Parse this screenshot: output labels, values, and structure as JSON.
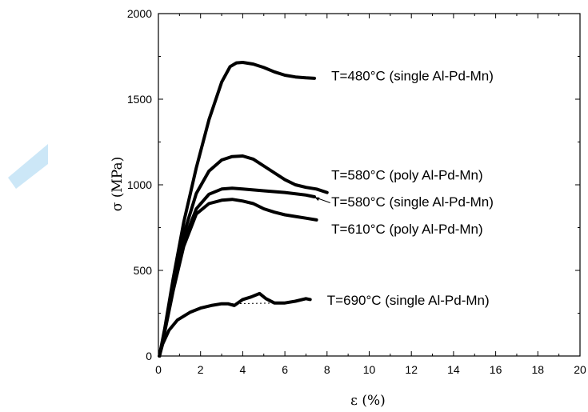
{
  "chart_data": {
    "type": "line",
    "title": "",
    "xlabel": "ε (%)",
    "ylabel": "σ (MPa)",
    "xlim": [
      0,
      20
    ],
    "ylim": [
      0,
      2000
    ],
    "xticks": [
      0,
      2,
      4,
      6,
      8,
      10,
      12,
      14,
      16,
      18,
      20
    ],
    "yticks": [
      0,
      500,
      1000,
      1500,
      2000
    ],
    "grid": false,
    "legend": "none",
    "series": [
      {
        "name": "T=480°C (single Al-Pd-Mn)",
        "x": [
          0.05,
          0.3,
          0.7,
          1.2,
          1.8,
          2.4,
          3.0,
          3.4,
          3.7,
          4.0,
          4.5,
          5.0,
          5.5,
          6.0,
          6.5,
          7.0,
          7.4
        ],
        "y": [
          0,
          160,
          450,
          780,
          1100,
          1380,
          1600,
          1690,
          1712,
          1715,
          1705,
          1685,
          1660,
          1640,
          1630,
          1625,
          1622
        ]
      },
      {
        "name": "T=580°C (poly Al-Pd-Mn)",
        "x": [
          0.05,
          0.3,
          0.7,
          1.2,
          1.8,
          2.4,
          3.0,
          3.5,
          4.0,
          4.5,
          5.0,
          5.5,
          6.0,
          6.5,
          7.0,
          7.5,
          8.0
        ],
        "y": [
          0,
          150,
          420,
          710,
          950,
          1080,
          1145,
          1165,
          1168,
          1150,
          1110,
          1070,
          1030,
          1000,
          985,
          975,
          955
        ]
      },
      {
        "name": "T=580°C (single Al-Pd-Mn)",
        "x": [
          0.05,
          0.3,
          0.7,
          1.2,
          1.8,
          2.4,
          3.0,
          3.5,
          4.0,
          5.0,
          6.0,
          7.0,
          7.4
        ],
        "y": [
          0,
          150,
          400,
          670,
          860,
          945,
          975,
          980,
          975,
          965,
          955,
          940,
          930
        ]
      },
      {
        "name": "T=610°C (poly Al-Pd-Mn)",
        "x": [
          0.05,
          0.3,
          0.7,
          1.2,
          1.8,
          2.4,
          3.0,
          3.5,
          4.0,
          4.5,
          5.0,
          5.5,
          6.0,
          6.5,
          7.0,
          7.5
        ],
        "y": [
          0,
          140,
          380,
          640,
          830,
          890,
          910,
          915,
          905,
          890,
          860,
          840,
          825,
          815,
          805,
          795
        ]
      },
      {
        "name": "T=690°C (single Al-Pd-Mn)",
        "x": [
          0.05,
          0.2,
          0.5,
          0.9,
          1.5,
          2.0,
          2.5,
          3.0,
          3.3,
          3.6,
          4.0,
          4.4,
          4.8,
          5.1,
          5.5,
          6.0,
          6.5,
          7.0,
          7.2
        ],
        "y": [
          0,
          70,
          150,
          210,
          255,
          280,
          295,
          305,
          305,
          295,
          330,
          345,
          365,
          335,
          310,
          310,
          320,
          335,
          330
        ]
      }
    ],
    "annotations": [
      {
        "text": "T=480°C (single Al-Pd-Mn)",
        "x": 8.2,
        "y": 1610
      },
      {
        "text": "T=580°C (poly Al-Pd-Mn)",
        "x": 8.2,
        "y": 1030
      },
      {
        "text": "T=580°C (single Al-Pd-Mn)",
        "x": 8.2,
        "y": 875
      },
      {
        "text": "T=610°C (poly Al-Pd-Mn)",
        "x": 8.2,
        "y": 715
      },
      {
        "text": "T=690°C (single Al-Pd-Mn)",
        "x": 8.0,
        "y": 300
      }
    ]
  }
}
